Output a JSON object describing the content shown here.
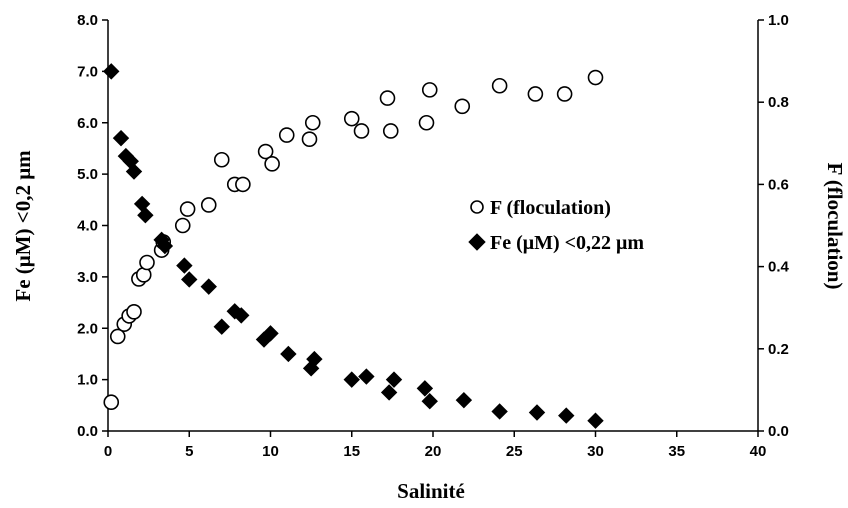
{
  "chart_data": {
    "type": "scatter",
    "xlabel": "Salinité",
    "ylabel_left": "Fe (μM) <0,2 μm",
    "ylabel_right": "F (floculation)",
    "xlim": [
      0,
      40
    ],
    "ylim_left": [
      0,
      8
    ],
    "ylim_right": [
      0,
      1
    ],
    "x_ticks": [
      "0",
      "5",
      "10",
      "15",
      "20",
      "25",
      "30",
      "35",
      "40"
    ],
    "y_left_ticks": [
      "0.0",
      "1.0",
      "2.0",
      "3.0",
      "4.0",
      "5.0",
      "6.0",
      "7.0",
      "8.0"
    ],
    "y_right_ticks": [
      "0.0",
      "0.2",
      "0.4",
      "0.6",
      "0.8",
      "1.0"
    ],
    "grid": false,
    "legend_position": "center-right",
    "series": [
      {
        "name": "F (floculation)",
        "marker": "open-circle",
        "axis": "right",
        "color": "#000000",
        "x": [
          0.2,
          0.6,
          1.0,
          1.3,
          1.6,
          1.9,
          2.2,
          2.4,
          3.3,
          3.4,
          4.6,
          4.9,
          6.2,
          7.0,
          7.8,
          8.3,
          9.7,
          10.1,
          11.0,
          12.4,
          12.6,
          15.0,
          15.6,
          17.2,
          17.4,
          19.6,
          19.8,
          21.8,
          24.1,
          26.3,
          28.1,
          30.0
        ],
        "y": [
          0.07,
          0.23,
          0.26,
          0.28,
          0.29,
          0.37,
          0.38,
          0.41,
          0.44,
          0.46,
          0.5,
          0.54,
          0.55,
          0.66,
          0.6,
          0.6,
          0.68,
          0.65,
          0.72,
          0.71,
          0.75,
          0.76,
          0.73,
          0.81,
          0.73,
          0.75,
          0.83,
          0.79,
          0.84,
          0.82,
          0.82,
          0.86
        ]
      },
      {
        "name": "Fe (μM) <0,22 μm",
        "marker": "filled-diamond",
        "axis": "left",
        "color": "#000000",
        "x": [
          0.2,
          0.8,
          1.1,
          1.4,
          1.6,
          2.1,
          2.3,
          3.3,
          3.5,
          4.7,
          5.0,
          6.2,
          7.0,
          7.8,
          8.2,
          9.6,
          10.0,
          11.1,
          12.5,
          12.7,
          15.0,
          15.9,
          17.3,
          17.6,
          19.5,
          19.8,
          21.9,
          24.1,
          26.4,
          28.2,
          30.0
        ],
        "y": [
          7.0,
          5.7,
          5.35,
          5.25,
          5.05,
          4.42,
          4.2,
          3.72,
          3.6,
          3.22,
          2.95,
          2.81,
          2.03,
          2.33,
          2.25,
          1.78,
          1.9,
          1.5,
          1.22,
          1.4,
          1.0,
          1.06,
          0.75,
          1.0,
          0.83,
          0.58,
          0.6,
          0.38,
          0.36,
          0.3,
          0.2
        ]
      }
    ]
  }
}
